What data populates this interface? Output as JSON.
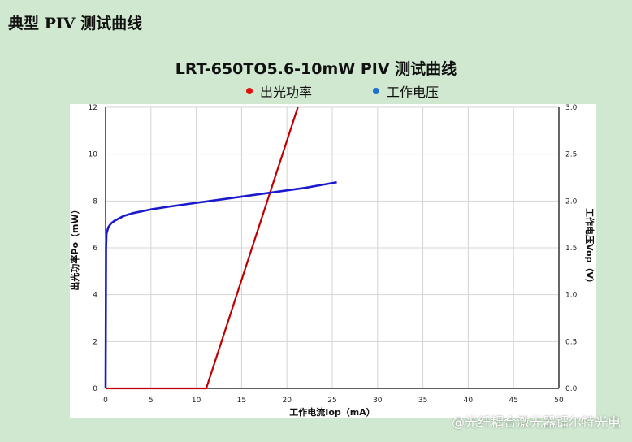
{
  "page": {
    "heading": "典型 PIV 测试曲线"
  },
  "watermark": "@光纤耦合激光器镭尔特光电",
  "colors": {
    "background": "#cfe8cf",
    "power_line": "#c00000",
    "voltage_line": "#1a1acc",
    "power_legend_dot": "#e01010",
    "voltage_legend_dot": "#1f6fd0",
    "grid": "#d4d4d4"
  },
  "chart_data": {
    "type": "line",
    "title": "LRT-650TO5.6-10mW PIV 测试曲线",
    "xlabel": "工作电流Iop（mA）",
    "ylabel_left": "出光功率Po（mW）",
    "ylabel_right": "工作电压Vop（V）",
    "xlim": [
      0,
      50
    ],
    "ylim_left": [
      0,
      12
    ],
    "ylim_right": [
      0,
      3
    ],
    "x_ticks": [
      "0",
      "5",
      "10",
      "15",
      "20",
      "25",
      "30",
      "35",
      "40",
      "45",
      "50"
    ],
    "y_left_ticks": [
      "0",
      "2",
      "4",
      "6",
      "8",
      "10",
      "12"
    ],
    "y_right_ticks": [
      "0.0",
      "0.5",
      "1.0",
      "1.5",
      "2.0",
      "2.5",
      "3.0"
    ],
    "grid": true,
    "legend_position": "top",
    "series": [
      {
        "name": "出光功率",
        "axis": "left",
        "x": [
          0,
          11.1,
          21.2
        ],
        "y": [
          0,
          0,
          12
        ]
      },
      {
        "name": "工作电压",
        "axis": "right",
        "x": [
          0,
          0.05,
          0.1,
          0.3,
          0.6,
          1,
          2,
          3,
          5,
          7,
          10,
          13,
          16,
          19,
          22,
          25.5
        ],
        "y": [
          0,
          1.5,
          1.65,
          1.72,
          1.76,
          1.79,
          1.84,
          1.87,
          1.91,
          1.94,
          1.98,
          2.02,
          2.06,
          2.1,
          2.14,
          2.2
        ]
      }
    ]
  }
}
